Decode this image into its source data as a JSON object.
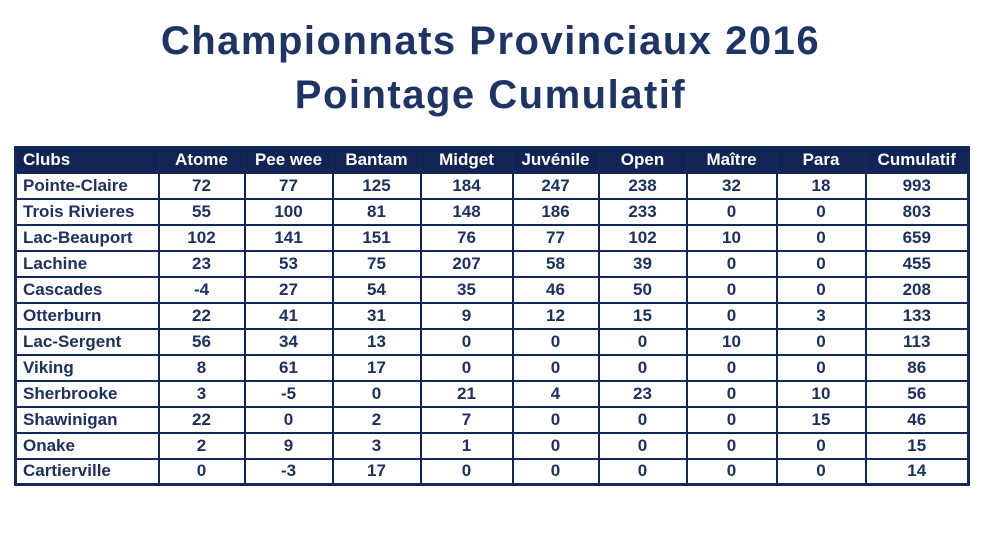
{
  "title": {
    "line1": "Championnats Provinciaux 2016",
    "line2": "Pointage Cumulatif"
  },
  "table": {
    "columns": [
      "Clubs",
      "Atome",
      "Pee wee",
      "Bantam",
      "Midget",
      "Juvénile",
      "Open",
      "Maître",
      "Para",
      "Cumulatif"
    ],
    "rows": [
      {
        "club": "Pointe-Claire",
        "values": [
          72,
          77,
          125,
          184,
          247,
          238,
          32,
          18,
          993
        ]
      },
      {
        "club": "Trois Rivieres",
        "values": [
          55,
          100,
          81,
          148,
          186,
          233,
          0,
          0,
          803
        ]
      },
      {
        "club": "Lac-Beauport",
        "values": [
          102,
          141,
          151,
          76,
          77,
          102,
          10,
          0,
          659
        ]
      },
      {
        "club": "Lachine",
        "values": [
          23,
          53,
          75,
          207,
          58,
          39,
          0,
          0,
          455
        ]
      },
      {
        "club": "Cascades",
        "values": [
          -4,
          27,
          54,
          35,
          46,
          50,
          0,
          0,
          208
        ]
      },
      {
        "club": "Otterburn",
        "values": [
          22,
          41,
          31,
          9,
          12,
          15,
          0,
          3,
          133
        ]
      },
      {
        "club": "Lac-Sergent",
        "values": [
          56,
          34,
          13,
          0,
          0,
          0,
          10,
          0,
          113
        ]
      },
      {
        "club": "Viking",
        "values": [
          8,
          61,
          17,
          0,
          0,
          0,
          0,
          0,
          86
        ]
      },
      {
        "club": "Sherbrooke",
        "values": [
          3,
          -5,
          0,
          21,
          4,
          23,
          0,
          10,
          56
        ]
      },
      {
        "club": "Shawinigan",
        "values": [
          22,
          0,
          2,
          7,
          0,
          0,
          0,
          15,
          46
        ]
      },
      {
        "club": "Onake",
        "values": [
          2,
          9,
          3,
          1,
          0,
          0,
          0,
          0,
          15
        ]
      },
      {
        "club": "Cartierville",
        "values": [
          0,
          -3,
          17,
          0,
          0,
          0,
          0,
          0,
          14
        ]
      }
    ]
  },
  "colors": {
    "header_bg": "#112455",
    "border": "#142759",
    "cell_text": "#1d3160",
    "title_text": "#1e3464",
    "page_bg": "#ffffff"
  }
}
